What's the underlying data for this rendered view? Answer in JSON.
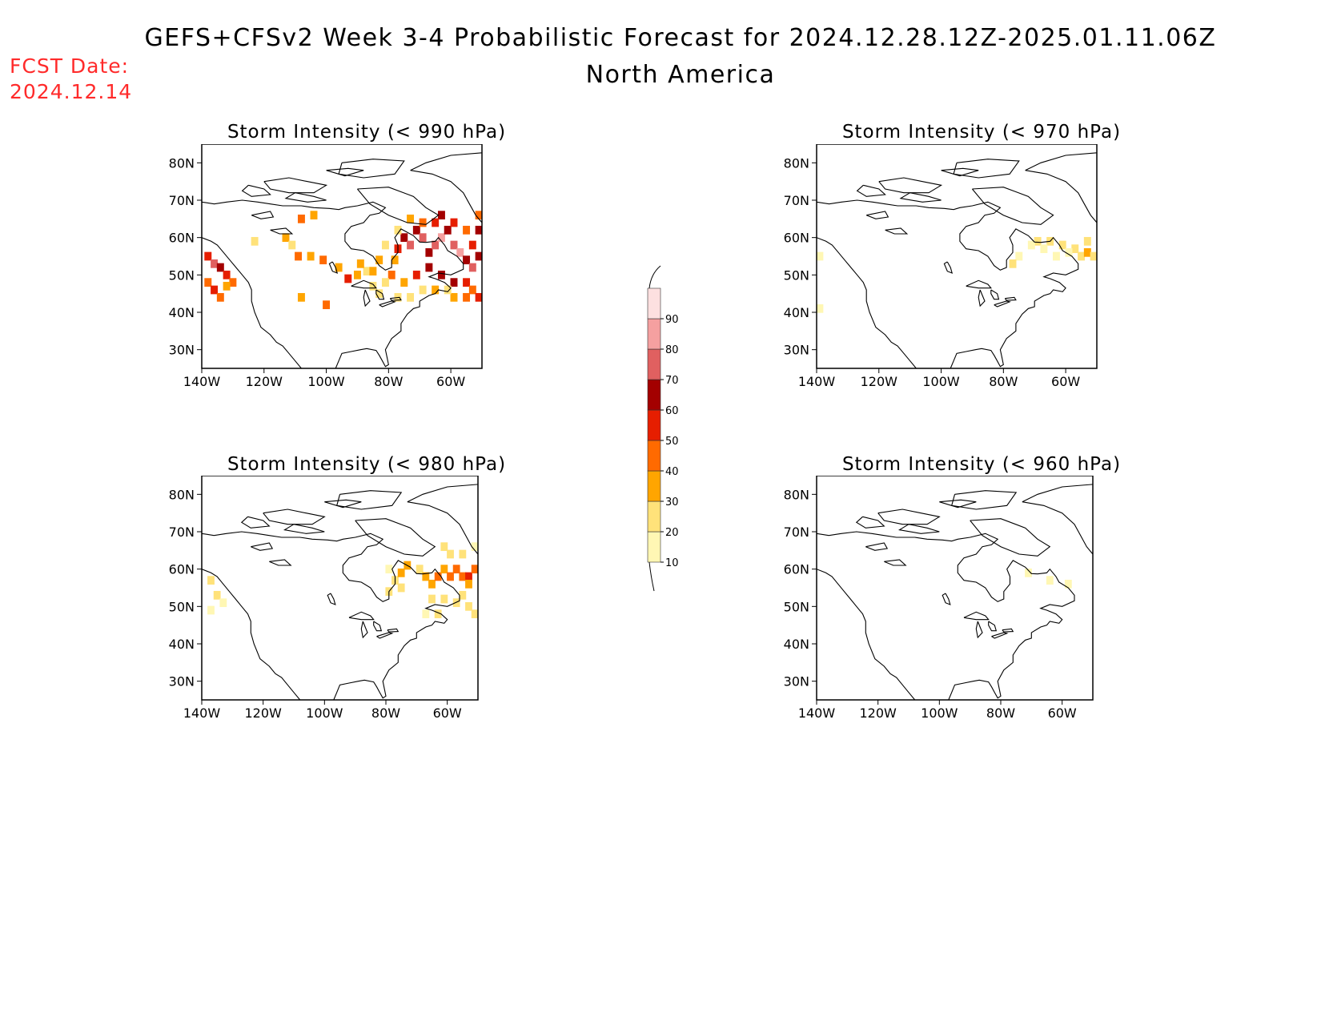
{
  "title": "GEFS+CFSv2 Week 3-4 Probabilistic Forecast for 2024.12.28.12Z-2025.01.11.06Z",
  "subtitle": "North America",
  "forecast_date_label": "FCST Date:",
  "forecast_date_value": "2024.12.14",
  "panels": [
    {
      "title": "Storm Intensity (< 990 hPa)"
    },
    {
      "title": "Storm Intensity (< 970 hPa)"
    },
    {
      "title": "Storm Intensity (< 980 hPa)"
    },
    {
      "title": "Storm Intensity (< 960 hPa)"
    }
  ],
  "lat_labels": [
    "80N",
    "70N",
    "60N",
    "50N",
    "40N",
    "30N"
  ],
  "lon_labels": [
    "140W",
    "120W",
    "100W",
    "80W",
    "60W"
  ],
  "colorbar": {
    "levels": [
      10,
      20,
      30,
      40,
      50,
      60,
      70,
      80,
      90
    ],
    "labels": [
      "10",
      "20",
      "30",
      "40",
      "50",
      "60",
      "70",
      "80",
      "90"
    ],
    "colors": [
      "#fff7b4",
      "#ffe27a",
      "#ffa500",
      "#ff6a00",
      "#e61e00",
      "#a30000",
      "#e06060",
      "#f5a0a0",
      "#fde0e0"
    ]
  },
  "chart_data": {
    "type": "heatmap",
    "description_units": "probability (%)",
    "xlim": [
      -140,
      -50
    ],
    "ylim": [
      25,
      85
    ],
    "cells": {
      "p990": [
        [
          -138,
          55,
          50
        ],
        [
          -136,
          53,
          70
        ],
        [
          -134,
          52,
          60
        ],
        [
          -132,
          50,
          50
        ],
        [
          -130,
          48,
          40
        ],
        [
          -138,
          48,
          40
        ],
        [
          -136,
          46,
          50
        ],
        [
          -134,
          44,
          40
        ],
        [
          -132,
          47,
          30
        ],
        [
          -123,
          59,
          20
        ],
        [
          -113,
          60,
          30
        ],
        [
          -111,
          58,
          20
        ],
        [
          -109,
          55,
          40
        ],
        [
          -105,
          55,
          30
        ],
        [
          -101,
          54,
          40
        ],
        [
          -108,
          65,
          40
        ],
        [
          -104,
          66,
          30
        ],
        [
          -96,
          52,
          30
        ],
        [
          -93,
          49,
          50
        ],
        [
          -90,
          50,
          30
        ],
        [
          -87,
          51,
          20
        ],
        [
          -85,
          47,
          20
        ],
        [
          -83,
          45,
          20
        ],
        [
          -100,
          42,
          40
        ],
        [
          -108,
          44,
          30
        ],
        [
          -78,
          54,
          30
        ],
        [
          -77,
          57,
          50
        ],
        [
          -75,
          60,
          60
        ],
        [
          -73,
          58,
          70
        ],
        [
          -71,
          62,
          60
        ],
        [
          -69,
          60,
          70
        ],
        [
          -67,
          56,
          60
        ],
        [
          -65,
          58,
          70
        ],
        [
          -63,
          60,
          80
        ],
        [
          -61,
          62,
          60
        ],
        [
          -59,
          58,
          70
        ],
        [
          -57,
          56,
          80
        ],
        [
          -55,
          54,
          60
        ],
        [
          -53,
          52,
          70
        ],
        [
          -51,
          55,
          60
        ],
        [
          -53,
          58,
          50
        ],
        [
          -55,
          62,
          40
        ],
        [
          -59,
          64,
          50
        ],
        [
          -63,
          66,
          60
        ],
        [
          -65,
          64,
          50
        ],
        [
          -69,
          64,
          40
        ],
        [
          -73,
          65,
          30
        ],
        [
          -77,
          62,
          20
        ],
        [
          -81,
          58,
          20
        ],
        [
          -83,
          54,
          30
        ],
        [
          -79,
          50,
          40
        ],
        [
          -75,
          48,
          30
        ],
        [
          -71,
          50,
          50
        ],
        [
          -67,
          52,
          60
        ],
        [
          -63,
          50,
          60
        ],
        [
          -59,
          48,
          60
        ],
        [
          -55,
          48,
          50
        ],
        [
          -53,
          46,
          40
        ],
        [
          -51,
          44,
          50
        ],
        [
          -55,
          44,
          40
        ],
        [
          -59,
          44,
          30
        ],
        [
          -61,
          46,
          20
        ],
        [
          -65,
          46,
          30
        ],
        [
          -69,
          46,
          20
        ],
        [
          -73,
          44,
          20
        ],
        [
          -77,
          44,
          20
        ],
        [
          -81,
          48,
          20
        ],
        [
          -85,
          51,
          30
        ],
        [
          -89,
          53,
          30
        ],
        [
          -51,
          66,
          40
        ],
        [
          -51,
          62,
          60
        ]
      ],
      "p970": [
        [
          -69,
          59,
          20
        ],
        [
          -65,
          59,
          20
        ],
        [
          -61,
          58,
          20
        ],
        [
          -57,
          57,
          20
        ],
        [
          -55,
          55,
          20
        ],
        [
          -53,
          56,
          30
        ],
        [
          -51,
          55,
          20
        ],
        [
          -53,
          59,
          20
        ],
        [
          -59,
          56,
          10
        ],
        [
          -63,
          55,
          10
        ],
        [
          -67,
          57,
          10
        ],
        [
          -71,
          58,
          10
        ],
        [
          -75,
          55,
          10
        ],
        [
          -77,
          53,
          20
        ],
        [
          -139,
          55,
          10
        ],
        [
          -139,
          41,
          10
        ]
      ],
      "p980": [
        [
          -77,
          57,
          20
        ],
        [
          -75,
          59,
          30
        ],
        [
          -73,
          61,
          30
        ],
        [
          -75,
          55,
          20
        ],
        [
          -79,
          54,
          20
        ],
        [
          -79,
          60,
          10
        ],
        [
          -69,
          60,
          20
        ],
        [
          -67,
          58,
          30
        ],
        [
          -65,
          56,
          30
        ],
        [
          -63,
          58,
          40
        ],
        [
          -61,
          60,
          30
        ],
        [
          -59,
          58,
          40
        ],
        [
          -57,
          60,
          40
        ],
        [
          -55,
          58,
          40
        ],
        [
          -53,
          58,
          50
        ],
        [
          -51,
          60,
          40
        ],
        [
          -53,
          56,
          30
        ],
        [
          -55,
          53,
          20
        ],
        [
          -57,
          51,
          20
        ],
        [
          -53,
          50,
          20
        ],
        [
          -51,
          48,
          20
        ],
        [
          -61,
          52,
          20
        ],
        [
          -65,
          52,
          20
        ],
        [
          -63,
          48,
          20
        ],
        [
          -67,
          48,
          10
        ],
        [
          -61,
          66,
          20
        ],
        [
          -59,
          64,
          20
        ],
        [
          -55,
          64,
          20
        ],
        [
          -51,
          66,
          10
        ],
        [
          -137,
          57,
          20
        ],
        [
          -135,
          53,
          20
        ],
        [
          -137,
          49,
          10
        ],
        [
          -133,
          51,
          10
        ]
      ],
      "p960": [
        [
          -71,
          59,
          10
        ],
        [
          -64,
          57,
          10
        ],
        [
          -58,
          56,
          10
        ]
      ]
    }
  }
}
